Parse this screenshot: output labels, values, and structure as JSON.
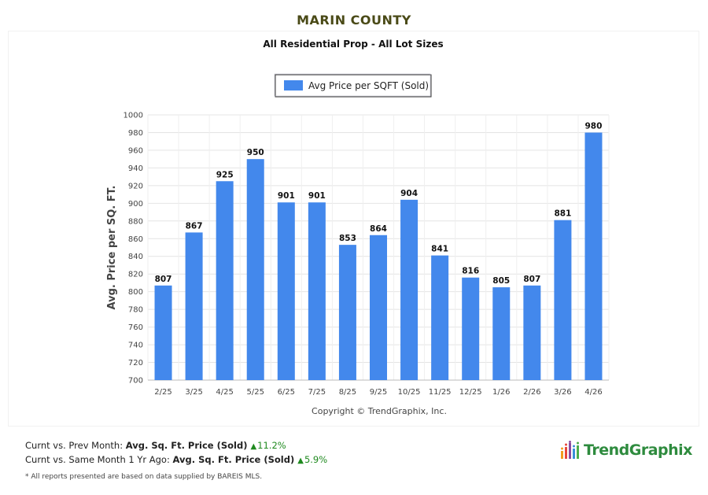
{
  "header": {
    "title": "MARIN COUNTY"
  },
  "colors": {
    "title": "#4a4a17",
    "bar": "#4388ec",
    "logo_green": "#2e8b3e",
    "delta_green": "#1f8a1f"
  },
  "chart_data": {
    "type": "bar",
    "title": "All Residential Prop - All Lot Sizes",
    "ylabel": "Avg. Price per SQ. FT.",
    "xlabel": "",
    "categories": [
      "2/25",
      "3/25",
      "4/25",
      "5/25",
      "6/25",
      "7/25",
      "8/25",
      "9/25",
      "10/25",
      "11/25",
      "12/25",
      "1/26",
      "2/26",
      "3/26",
      "4/26"
    ],
    "series": [
      {
        "name": "Avg Price per SQFT (Sold)",
        "values": [
          807,
          867,
          925,
          950,
          901,
          901,
          853,
          864,
          904,
          841,
          816,
          805,
          807,
          881,
          980
        ]
      }
    ],
    "ylim": [
      700,
      1000
    ],
    "yticks": [
      700,
      720,
      740,
      760,
      780,
      800,
      820,
      840,
      860,
      880,
      900,
      920,
      940,
      960,
      980,
      1000
    ],
    "grid": true,
    "legend_position": "top-center",
    "copyright": "Copyright © TrendGraphix, Inc."
  },
  "summary": {
    "line1": {
      "prefix": "Curnt vs. Prev Month: ",
      "metric": "Avg. Sq. Ft. Price (Sold)",
      "delta": "11.2%"
    },
    "line2": {
      "prefix": "Curnt vs. Same Month 1 Yr Ago: ",
      "metric": "Avg. Sq. Ft. Price (Sold)",
      "delta": "5.9%"
    }
  },
  "logo": {
    "text": "TrendGraphix",
    "icon": "bar-chart-logo-icon"
  },
  "footnote": "* All reports presented are based on data supplied by BAREIS MLS."
}
